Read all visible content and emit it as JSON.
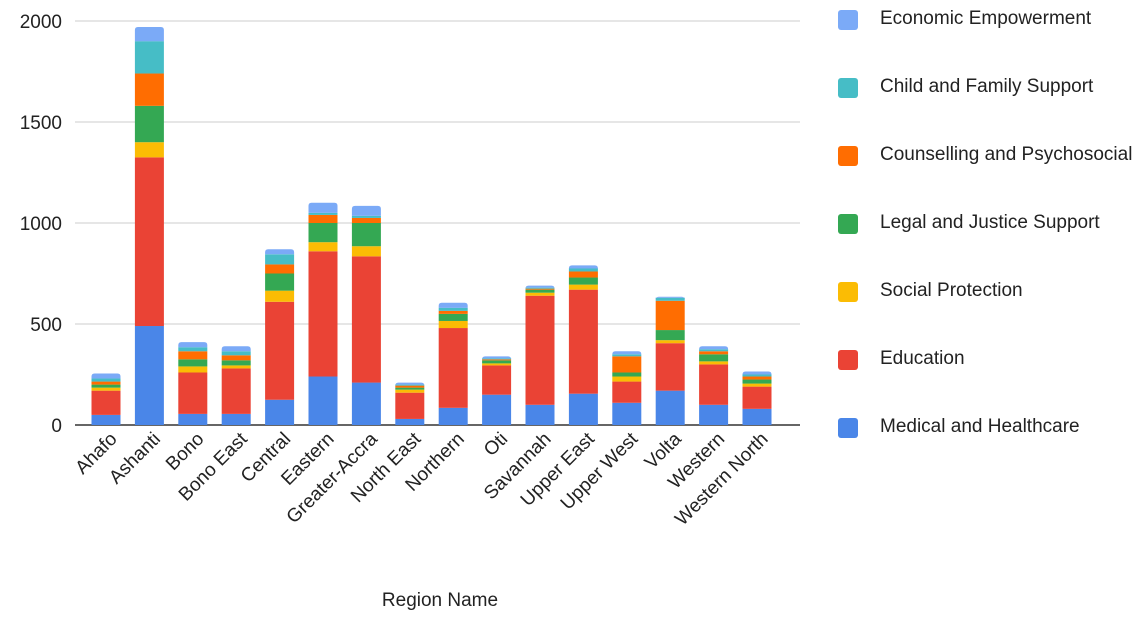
{
  "chart_data": {
    "type": "bar",
    "stacked": true,
    "title": "",
    "xlabel": "Region Name",
    "ylabel": "",
    "ylim": [
      0,
      2000
    ],
    "yticks": [
      0,
      500,
      1000,
      1500,
      2000
    ],
    "grid": true,
    "legend_position": "right",
    "categories": [
      "Ahafo",
      "Ashanti",
      "Bono",
      "Bono East",
      "Central",
      "Eastern",
      "Greater-Accra",
      "North East",
      "Northern",
      "Oti",
      "Savannah",
      "Upper East",
      "Upper West",
      "Volta",
      "Western",
      "Western North"
    ],
    "series": [
      {
        "name": "Medical and Healthcare",
        "color": "#4a86e8",
        "values": [
          50,
          490,
          55,
          55,
          125,
          240,
          210,
          30,
          85,
          150,
          100,
          155,
          110,
          170,
          100,
          80
        ]
      },
      {
        "name": "Education",
        "color": "#ea4335",
        "values": [
          120,
          835,
          205,
          225,
          485,
          620,
          625,
          130,
          395,
          145,
          540,
          515,
          105,
          235,
          200,
          110
        ]
      },
      {
        "name": "Social Protection",
        "color": "#fbbc04",
        "values": [
          15,
          75,
          30,
          15,
          55,
          45,
          50,
          15,
          35,
          10,
          15,
          25,
          25,
          15,
          15,
          15
        ]
      },
      {
        "name": "Legal and Justice Support",
        "color": "#34a853",
        "values": [
          15,
          180,
          35,
          25,
          85,
          95,
          115,
          10,
          35,
          15,
          15,
          35,
          20,
          50,
          35,
          20
        ]
      },
      {
        "name": "Counselling and Psychosocial",
        "color": "#ff6d01",
        "values": [
          15,
          160,
          40,
          25,
          45,
          40,
          25,
          10,
          15,
          5,
          5,
          30,
          80,
          145,
          15,
          15
        ]
      },
      {
        "name": "Child and Family Support",
        "color": "#46bdc6",
        "values": [
          15,
          160,
          20,
          20,
          50,
          10,
          10,
          5,
          15,
          5,
          5,
          15,
          10,
          15,
          10,
          10
        ]
      },
      {
        "name": "Economic Empowerment",
        "color": "#7baaf7",
        "values": [
          25,
          70,
          25,
          25,
          25,
          50,
          50,
          10,
          25,
          10,
          10,
          15,
          15,
          5,
          15,
          15
        ]
      }
    ]
  }
}
